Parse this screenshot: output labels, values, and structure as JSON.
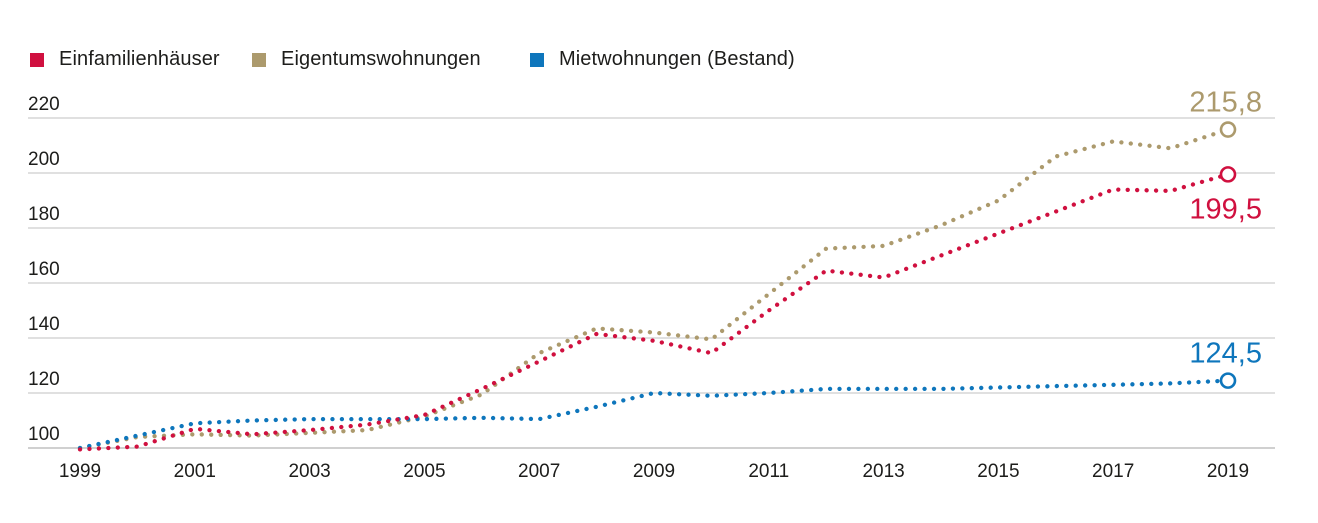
{
  "legend": [
    {
      "label": "Einfamilienhäuser",
      "color": "#d0103f"
    },
    {
      "label": "Eigentumswohnungen",
      "color": "#ac9a6d"
    },
    {
      "label": "Mietwohnungen (Bestand)",
      "color": "#0e76bc"
    }
  ],
  "chart_data": {
    "type": "line",
    "title": "",
    "x": [
      1999,
      2000,
      2001,
      2002,
      2003,
      2004,
      2005,
      2006,
      2007,
      2008,
      2009,
      2010,
      2011,
      2012,
      2013,
      2014,
      2015,
      2016,
      2017,
      2018,
      2019
    ],
    "series": [
      {
        "name": "Eigentumswohnungen",
        "color": "#ac9a6d",
        "values": [
          100,
          104,
          105,
          104.5,
          105.5,
          106.5,
          111.5,
          119.5,
          134.5,
          143.5,
          142,
          139.5,
          156,
          172.5,
          173.5,
          181,
          190,
          206,
          211.5,
          209,
          215.8
        ],
        "end_label": "215,8",
        "end_label_position": "above"
      },
      {
        "name": "Mietwohnungen (Bestand)",
        "color": "#0e76bc",
        "values": [
          100,
          104.5,
          109,
          110,
          110.5,
          110.5,
          110.5,
          111,
          110.5,
          115,
          120,
          119,
          120,
          121.5,
          121.5,
          121.5,
          122,
          122.5,
          123,
          123.5,
          124.5
        ],
        "end_label": "124,5",
        "end_label_position": "above"
      },
      {
        "name": "Einfamilienhäuser",
        "color": "#d0103f",
        "values": [
          99.5,
          100.5,
          107,
          105,
          106.5,
          108.5,
          112,
          121.5,
          131.5,
          141.5,
          139,
          134.5,
          150,
          164.5,
          162,
          170,
          178,
          186,
          194,
          193.5,
          199.5
        ],
        "end_label": "199,5",
        "end_label_position": "below"
      }
    ],
    "yticks": [
      100,
      120,
      140,
      160,
      180,
      200,
      220
    ],
    "xticks": [
      1999,
      2001,
      2003,
      2005,
      2007,
      2009,
      2011,
      2013,
      2015,
      2017,
      2019
    ],
    "ylim": [
      97,
      228
    ],
    "xlabel": "",
    "ylabel": "",
    "grid": "horizontal",
    "legend_position": "top-left",
    "line_style": "dotted",
    "end_marker": "open-circle"
  }
}
